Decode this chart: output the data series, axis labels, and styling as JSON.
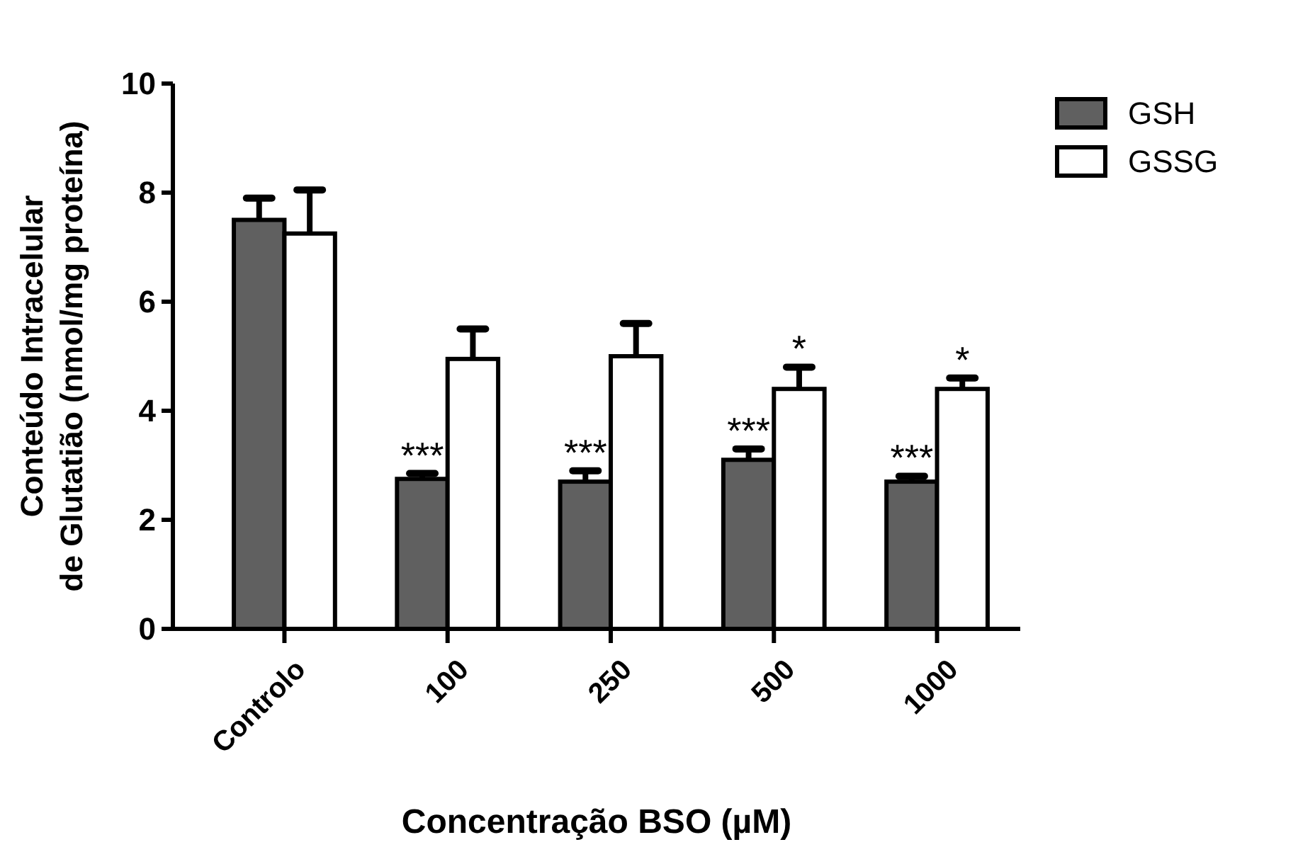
{
  "chart_data": {
    "type": "bar",
    "xlabel": "Concentração BSO (µM)",
    "ylabel": "Conteúdo Intracelular\nde Glutatião (nmol/mg proteína)",
    "categories": [
      "Controlo",
      "100",
      "250",
      "500",
      "1000"
    ],
    "series": [
      {
        "name": "GSH",
        "color": "#606060",
        "values": [
          7.5,
          2.75,
          2.7,
          3.1,
          2.7
        ],
        "errors": [
          [
            7.5,
            7.9
          ],
          [
            2.75,
            2.85
          ],
          [
            2.7,
            2.9
          ],
          [
            3.1,
            3.3
          ],
          [
            2.7,
            2.8
          ]
        ]
      },
      {
        "name": "GSSG",
        "color": "#ffffff",
        "values": [
          7.25,
          4.95,
          5.0,
          4.4,
          4.4
        ],
        "errors": [
          [
            7.25,
            8.05
          ],
          [
            4.95,
            5.5
          ],
          [
            5.0,
            5.6
          ],
          [
            4.4,
            4.8
          ],
          [
            4.4,
            4.6
          ]
        ]
      }
    ],
    "annotations": [
      {
        "text": "***",
        "x": "100",
        "y": 2.75
      },
      {
        "text": "***",
        "x": "250",
        "y": 2.7
      },
      {
        "text": "***",
        "x": "500",
        "y": 3.1
      },
      {
        "text": "*",
        "x": "500",
        "y": 4.4
      },
      {
        "text": "***",
        "x": "1000",
        "y": 2.7
      },
      {
        "text": "*",
        "x": "1000",
        "y": 4.4
      }
    ],
    "ylim": [
      0,
      10
    ],
    "yticks": [
      0,
      2,
      4,
      6,
      8,
      10
    ],
    "grid": false,
    "legend": "top right"
  }
}
